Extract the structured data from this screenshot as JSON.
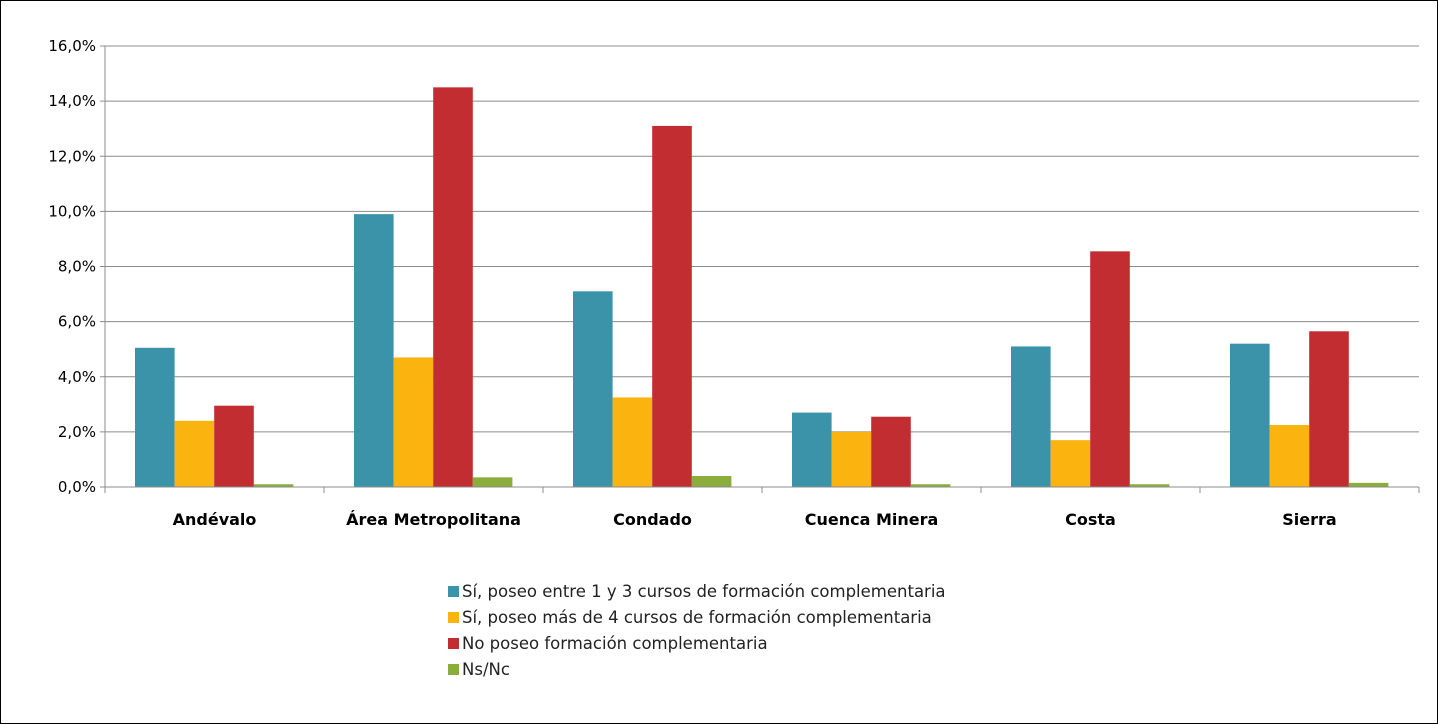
{
  "chart_data": {
    "type": "bar",
    "title": "",
    "xlabel": "",
    "ylabel": "",
    "ylim": [
      0,
      16
    ],
    "yticks": [
      "0,0%",
      "2,0%",
      "4,0%",
      "6,0%",
      "8,0%",
      "10,0%",
      "12,0%",
      "14,0%",
      "16,0%"
    ],
    "grid": true,
    "legend_position": "bottom",
    "categories": [
      "Andévalo",
      "Área Metropolitana",
      "Condado",
      "Cuenca Minera",
      "Costa",
      "Sierra"
    ],
    "series": [
      {
        "name": "Sí, poseo entre 1 y 3 cursos de formación complementaria",
        "color": "#3a93a9",
        "values": [
          5.05,
          9.9,
          7.1,
          2.7,
          5.1,
          5.2
        ]
      },
      {
        "name": "Sí, poseo más de 4 cursos de formación complementaria",
        "color": "#fbb40f",
        "values": [
          2.4,
          4.7,
          3.25,
          2.0,
          1.7,
          2.25
        ]
      },
      {
        "name": "No poseo formación complementaria",
        "color": "#c12d30",
        "values": [
          2.95,
          14.5,
          13.1,
          2.55,
          8.55,
          5.65
        ]
      },
      {
        "name": "Ns/Nc",
        "color": "#8aad3b",
        "values": [
          0.1,
          0.35,
          0.4,
          0.1,
          0.1,
          0.15
        ]
      }
    ]
  }
}
